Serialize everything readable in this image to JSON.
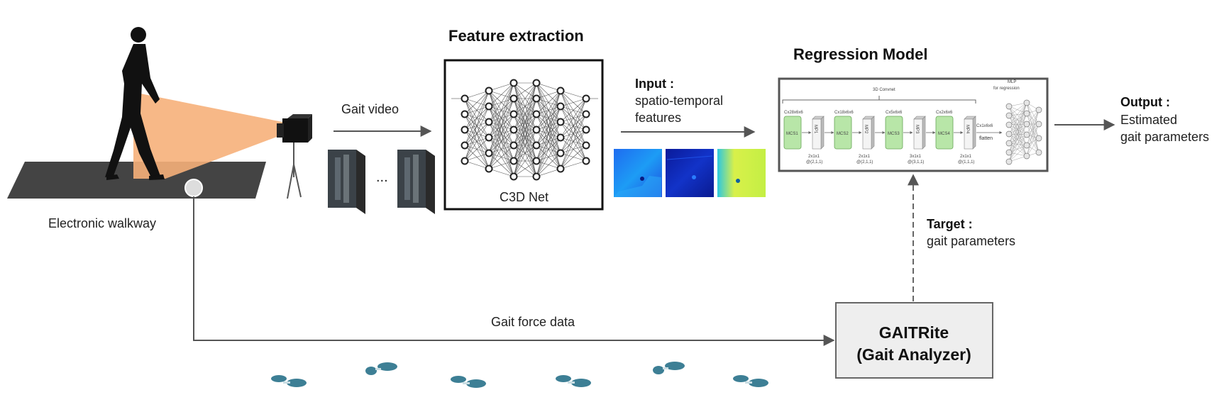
{
  "walkway": {
    "label": "Electronic walkway"
  },
  "video": {
    "label": "Gait video",
    "ellipsis": "..."
  },
  "feature_extraction": {
    "title": "Feature extraction",
    "net_label": "C3D Net"
  },
  "input": {
    "title": "Input :",
    "line1": "spatio-temporal",
    "line2": "features"
  },
  "regression": {
    "title": "Regression Model",
    "inner": {
      "conv_title": "3D Convnet",
      "mlp_title_1": "MLP",
      "mlp_title_2": "for regression",
      "blocks": [
        {
          "conv": "MCS1",
          "pool": "MP1",
          "top": "Cx28x6x6",
          "bottom1": "2x1x1",
          "bottom2": "@(2,1,1)"
        },
        {
          "conv": "MCS2",
          "pool": "MP2",
          "top": "Cx18x6x6",
          "bottom1": "2x1x1",
          "bottom2": "@(2,1,1)"
        },
        {
          "conv": "MCS3",
          "pool": "MP3",
          "top": "Cx5x6x6",
          "bottom1": "3x1x1",
          "bottom2": "@(3,1,1)"
        },
        {
          "conv": "MCS4",
          "pool": "MP4",
          "top": "Cx2x6x6",
          "bottom1": "2x1x1",
          "bottom2": "@(1,1,1)"
        }
      ],
      "flatten_top": "Cx1x6x6",
      "flatten": "flatten"
    }
  },
  "output": {
    "title": "Output :",
    "line1": "Estimated",
    "line2": "gait parameters"
  },
  "target": {
    "title": "Target :",
    "line1": "gait parameters"
  },
  "force": {
    "label": "Gait force data"
  },
  "gaitrite": {
    "line1": "GAITRite",
    "line2": "(Gait Analyzer)"
  },
  "colors": {
    "orange_beam": "#f6b07a",
    "walkway": "#444444",
    "gaitrite_box": "#eeeeee",
    "footprint": "#3d7f95",
    "mcs_green": "#b8e6a8"
  }
}
